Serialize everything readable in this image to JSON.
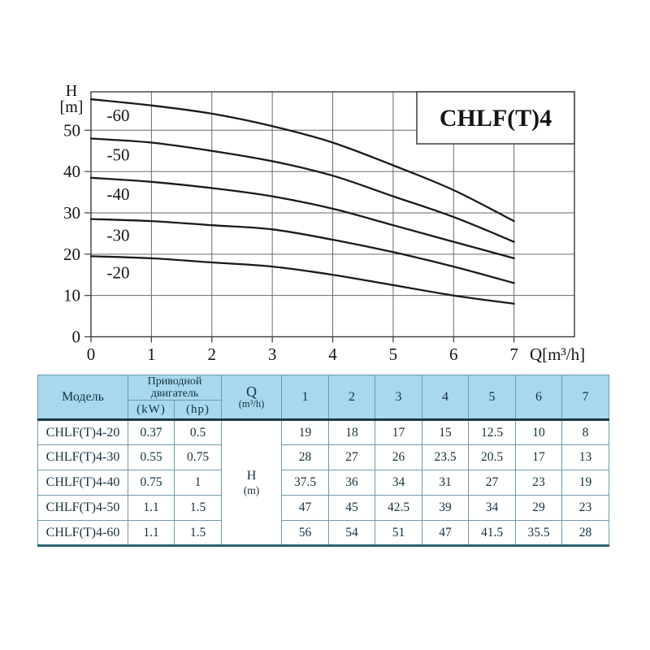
{
  "chart_data": {
    "type": "line",
    "title": "CHLF(T)4",
    "xlabel": "Q[m³/h]",
    "ylabel_lines": [
      "H",
      "[m]"
    ],
    "x": [
      0,
      1,
      2,
      3,
      4,
      5,
      6,
      7
    ],
    "x_ticks": [
      "0",
      "1",
      "2",
      "3",
      "4",
      "5",
      "6",
      "7"
    ],
    "y_ticks": [
      "0",
      "10",
      "20",
      "30",
      "40",
      "50"
    ],
    "y_tick_values": [
      0,
      10,
      20,
      30,
      40,
      50
    ],
    "xlim": [
      0,
      8
    ],
    "ylim": [
      0,
      59.3
    ],
    "grid": true,
    "legend_position": "labels-on-curves-left",
    "series": [
      {
        "name": "-60",
        "values": [
          57.5,
          56,
          54,
          51,
          47,
          41.5,
          35.5,
          28
        ]
      },
      {
        "name": "-50",
        "values": [
          48,
          47,
          45,
          42.5,
          39,
          34,
          29,
          23
        ]
      },
      {
        "name": "-40",
        "values": [
          38.5,
          37.5,
          36,
          34,
          31,
          27,
          23,
          19
        ]
      },
      {
        "name": "-30",
        "values": [
          28.5,
          28,
          27,
          26,
          23.5,
          20.5,
          17,
          13
        ]
      },
      {
        "name": "-20",
        "values": [
          19.5,
          19,
          18,
          17,
          15,
          12.5,
          10,
          8
        ]
      }
    ]
  },
  "table": {
    "header": {
      "model": "Модель",
      "motor_line1": "Приводной",
      "motor_line2": "двигатель",
      "kw": "(kW)",
      "hp": "(hp)",
      "q_symbol": "Q",
      "q_unit": "(m³/h)",
      "flow_columns": [
        "1",
        "2",
        "3",
        "4",
        "5",
        "6",
        "7"
      ]
    },
    "h_cell": {
      "line1": "H",
      "line2": "(m)"
    },
    "rows": [
      {
        "model": "CHLF(T)4-20",
        "kw": "0.37",
        "hp": "0.5",
        "h": [
          "19",
          "18",
          "17",
          "15",
          "12.5",
          "10",
          "8"
        ]
      },
      {
        "model": "CHLF(T)4-30",
        "kw": "0.55",
        "hp": "0.75",
        "h": [
          "28",
          "27",
          "26",
          "23.5",
          "20.5",
          "17",
          "13"
        ]
      },
      {
        "model": "CHLF(T)4-40",
        "kw": "0.75",
        "hp": "1",
        "h": [
          "37.5",
          "36",
          "34",
          "31",
          "27",
          "23",
          "19"
        ]
      },
      {
        "model": "CHLF(T)4-50",
        "kw": "1.1",
        "hp": "1.5",
        "h": [
          "47",
          "45",
          "42.5",
          "39",
          "34",
          "29",
          "23"
        ]
      },
      {
        "model": "CHLF(T)4-60",
        "kw": "1.1",
        "hp": "1.5",
        "h": [
          "56",
          "54",
          "51",
          "47",
          "41.5",
          "35.5",
          "28"
        ]
      }
    ]
  },
  "colors": {
    "header_bg": "#a7d8ed",
    "thin_border": "#6f9aaa",
    "thick_border": "#1c3a44",
    "bottom_border": "#2d6472",
    "table_text": "#14323f",
    "curve": "#1a1a1a",
    "grid": "#6a6a6a",
    "frame": "#3c3c3c",
    "chart_text": "#151515"
  }
}
